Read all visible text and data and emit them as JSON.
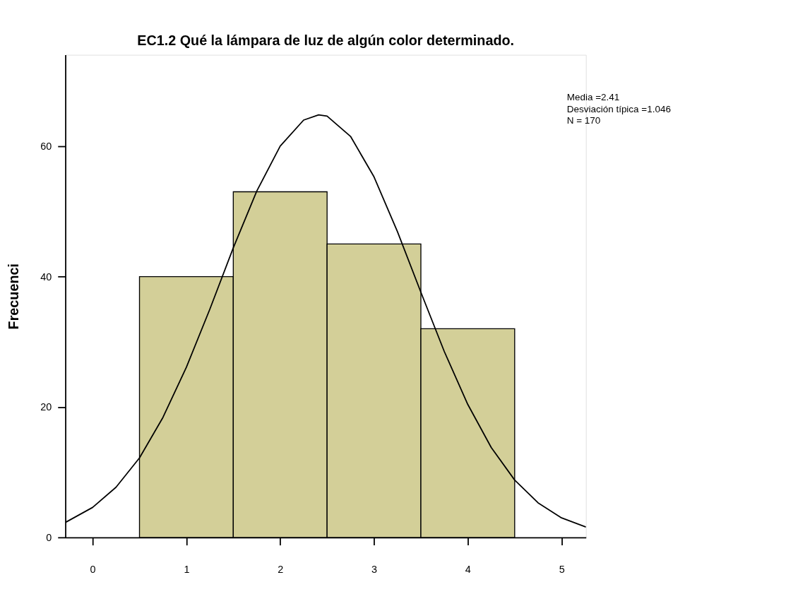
{
  "chart_data": {
    "type": "histogram",
    "title": "EC1.2 Qué la lámpara de luz de algún color determinado.",
    "ylabel": "Frecuenci",
    "bins": [
      0.5,
      1.5,
      2.5,
      3.5,
      4.5
    ],
    "values": [
      40,
      53,
      45,
      32
    ],
    "color": "#d3cf98",
    "series": [
      {
        "type": "line",
        "color": "#000000",
        "x": [
          -0.29,
          0,
          0.25,
          0.5,
          0.75,
          1.0,
          1.25,
          1.5,
          1.75,
          2.0,
          2.25,
          2.41,
          2.5,
          2.75,
          3.0,
          3.25,
          3.5,
          3.75,
          4.0,
          4.25,
          4.5,
          4.75,
          5.0,
          5.26
        ],
        "values": [
          2.3,
          4.6,
          7.7,
          12.2,
          18.4,
          26.1,
          35.0,
          44.4,
          53.1,
          60.0,
          64.0,
          64.8,
          64.6,
          61.5,
          55.3,
          46.9,
          37.6,
          28.5,
          20.4,
          13.8,
          8.8,
          5.3,
          3.0,
          1.6
        ]
      }
    ],
    "xlim": [
      -0.29,
      5.26
    ],
    "ylim": [
      0,
      74
    ],
    "xticks": [
      0,
      1,
      2,
      3,
      4,
      5
    ],
    "yticks": [
      0,
      20,
      40,
      60
    ],
    "grid": false,
    "marker": "none",
    "line_style": "solid",
    "annotations": [
      "Media =2.41",
      "Desviación típica =1.046",
      "N = 170"
    ]
  }
}
